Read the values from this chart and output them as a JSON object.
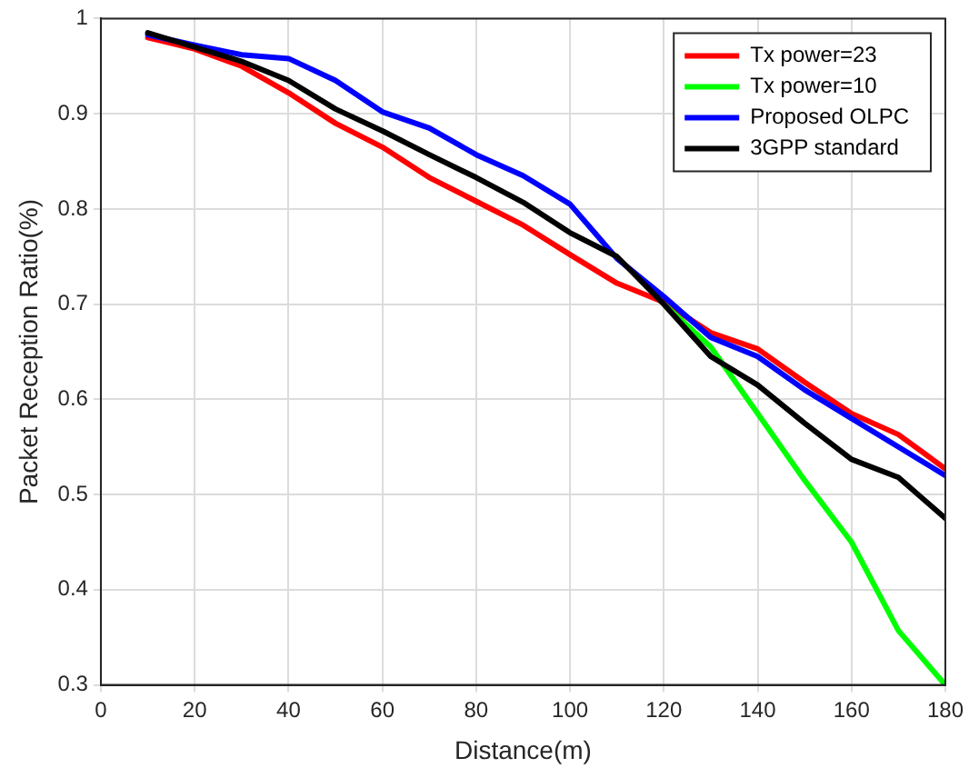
{
  "chart_data": {
    "type": "line",
    "xlabel": "Distance(m)",
    "ylabel": "Packet Reception Ratio(%)",
    "x": [
      10,
      20,
      30,
      40,
      50,
      60,
      70,
      80,
      90,
      100,
      110,
      120,
      130,
      140,
      150,
      160,
      170,
      180
    ],
    "series": [
      {
        "name": "Tx power=23",
        "color": "#ff0000",
        "values": [
          0.98,
          0.968,
          0.95,
          0.922,
          0.89,
          0.865,
          0.833,
          0.808,
          0.783,
          0.752,
          0.722,
          0.702,
          0.67,
          0.653,
          0.618,
          0.585,
          0.563,
          0.527
        ]
      },
      {
        "name": "Tx power=10",
        "color": "#00ff00",
        "values": [
          null,
          null,
          null,
          null,
          null,
          null,
          null,
          null,
          null,
          null,
          null,
          0.7,
          0.655,
          0.585,
          0.515,
          0.45,
          0.357,
          0.3
        ]
      },
      {
        "name": "Proposed OLPC",
        "color": "#0000ff",
        "values": [
          0.983,
          0.972,
          0.962,
          0.958,
          0.935,
          0.902,
          0.885,
          0.857,
          0.835,
          0.805,
          0.748,
          0.708,
          0.665,
          0.645,
          0.61,
          0.58,
          0.55,
          0.52
        ]
      },
      {
        "name": "3GPP standard",
        "color": "#000000",
        "values": [
          0.985,
          0.97,
          0.955,
          0.935,
          0.905,
          0.882,
          0.857,
          0.833,
          0.807,
          0.775,
          0.75,
          0.7,
          0.645,
          0.615,
          0.575,
          0.537,
          0.518,
          0.475
        ]
      }
    ],
    "xlim": [
      0,
      180
    ],
    "xticks": [
      0,
      20,
      40,
      60,
      80,
      100,
      120,
      140,
      160,
      180
    ],
    "ylim": [
      0.3,
      1
    ],
    "yticks": [
      0.3,
      0.4,
      0.5,
      0.6,
      0.7,
      0.8,
      0.9,
      1
    ],
    "grid": true,
    "legend": "top right",
    "marker": "none",
    "line_style": "solid"
  }
}
